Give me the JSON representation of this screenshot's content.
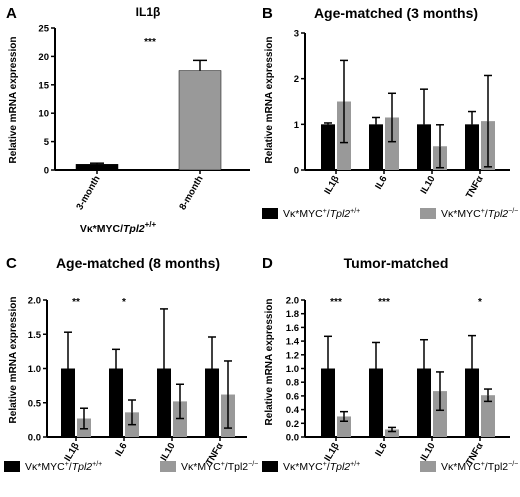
{
  "colors": {
    "series_black": "#000000",
    "series_grey": "#8c8c8c",
    "bar_dark": "#000000",
    "bar_grey": "#999999"
  },
  "chart_data": [
    {
      "panel": "A",
      "type": "bar",
      "title": "IL1β",
      "ylabel": "Relative mRNA expression",
      "xlabel": "Vκ*MYC/Tpl2+/+",
      "xlabel_parts": {
        "base": "Vκ*MYC/",
        "italic": "Tpl2",
        "sup": "+/+"
      },
      "ylim": [
        0,
        25
      ],
      "yticks": [
        "0",
        "5",
        "10",
        "15",
        "20",
        "25"
      ],
      "categories": [
        "3-month",
        "8-month"
      ],
      "values": [
        1.0,
        17.5
      ],
      "errors": [
        0.2,
        1.8
      ],
      "bar_colors": [
        "#000000",
        "#999999"
      ],
      "significance": "***"
    },
    {
      "panel": "B",
      "type": "bar",
      "title": "Age-matched (3 months)",
      "ylabel": "Relative mRNA expression",
      "ylim": [
        0,
        3
      ],
      "yticks": [
        "0",
        "1",
        "2",
        "3"
      ],
      "categories": [
        "IL1β",
        "IL6",
        "IL10",
        "TNFα"
      ],
      "series": [
        {
          "name": "Vκ*MYC+/Tpl2+/+",
          "values": [
            1.0,
            1.0,
            1.0,
            1.0
          ],
          "errors": [
            0.03,
            0.15,
            0.77,
            0.28
          ]
        },
        {
          "name": "Vκ*MYC+/Tpl2−/−",
          "values": [
            1.5,
            1.15,
            0.52,
            1.07
          ],
          "errors": [
            0.9,
            0.53,
            0.47,
            1.0
          ]
        }
      ],
      "significance": [
        "",
        "",
        "",
        ""
      ],
      "legend": [
        {
          "base": "Vκ*MYC",
          "sup1": "+",
          "slash": "/",
          "italic": "Tpl2",
          "sup2": "+/+"
        },
        {
          "base": "Vκ*MYC",
          "sup1": "+",
          "slash": "/",
          "italic": "Tpl2",
          "sup2": "−/−"
        }
      ]
    },
    {
      "panel": "C",
      "type": "bar",
      "title": "Age-matched (8 months)",
      "ylabel": "Relative mRNA expression",
      "ylim": [
        0,
        2.0
      ],
      "yticks": [
        "0.0",
        "0.5",
        "1.0",
        "1.5",
        "2.0"
      ],
      "categories": [
        "IL1β",
        "IL6",
        "IL10",
        "TNFα"
      ],
      "series": [
        {
          "name": "Vκ*MYC+/Tpl2+/+",
          "values": [
            1.0,
            1.0,
            1.0,
            1.0
          ],
          "errors": [
            0.53,
            0.28,
            0.87,
            0.46
          ]
        },
        {
          "name": "Vκ*MYC+/Tpl2−/−",
          "values": [
            0.27,
            0.36,
            0.52,
            0.62
          ],
          "errors": [
            0.15,
            0.18,
            0.25,
            0.49
          ]
        }
      ],
      "significance": [
        "**",
        "*",
        "",
        ""
      ],
      "legend": [
        {
          "base": "Vκ*MYC",
          "sup1": "+",
          "slash": "/",
          "italic": "Tpl2",
          "sup2": "+/+"
        },
        {
          "base": "Vκ*MYC",
          "sup1": "+",
          "slash": "/Tpl2",
          "italic": "",
          "sup2": "−/−"
        }
      ]
    },
    {
      "panel": "D",
      "type": "bar",
      "title": "Tumor-matched",
      "ylabel": "Relative mRNA expression",
      "ylim": [
        0,
        2.0
      ],
      "yticks": [
        "0.0",
        "0.2",
        "0.4",
        "0.6",
        "0.8",
        "1.0",
        "1.2",
        "1.4",
        "1.6",
        "1.8",
        "2.0"
      ],
      "categories": [
        "IL1β",
        "IL6",
        "IL10",
        "TNFα"
      ],
      "series": [
        {
          "name": "Vκ*MYC+/Tpl2+/+",
          "values": [
            1.0,
            1.0,
            1.0,
            1.0
          ],
          "errors": [
            0.47,
            0.38,
            0.42,
            0.48
          ]
        },
        {
          "name": "Vκ*MYC+/Tpl2−/−",
          "values": [
            0.3,
            0.11,
            0.67,
            0.61
          ],
          "errors": [
            0.07,
            0.03,
            0.28,
            0.09
          ]
        }
      ],
      "significance": [
        "***",
        "***",
        "",
        "*"
      ],
      "legend": [
        {
          "base": "Vκ*MYC",
          "sup1": "+",
          "slash": "/",
          "italic": "Tpl2",
          "sup2": "+/+"
        },
        {
          "base": "Vκ*MYC",
          "sup1": "+",
          "slash": "/Tpl2",
          "italic": "",
          "sup2": "−/−"
        }
      ]
    }
  ]
}
